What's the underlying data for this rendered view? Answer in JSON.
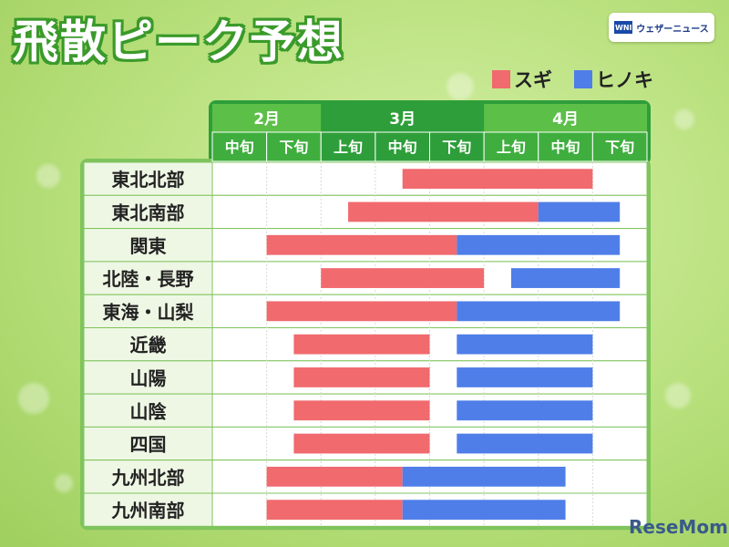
{
  "title": "飛散ピーク予想",
  "logo_text": "ウェザーニュース",
  "logo_mark": "WNI",
  "watermark": "ReseMom",
  "colors": {
    "sugi": "#f06a6e",
    "hinoki": "#4f7ee8",
    "header_dark": "#2e9e3a",
    "header_light": "#5cbf48"
  },
  "icons": {
    "legend_sugi": "red-square-icon",
    "legend_hinoki": "blue-square-icon"
  },
  "chart_data": {
    "type": "gantt",
    "months": [
      "2月",
      "3月",
      "4月"
    ],
    "periods": [
      "中旬",
      "下旬",
      "上旬",
      "中旬",
      "下旬",
      "上旬",
      "中旬",
      "下旬"
    ],
    "period_month_index": [
      0,
      0,
      1,
      1,
      1,
      2,
      2,
      2
    ],
    "legend": [
      {
        "name": "スギ",
        "color": "#f06a6e"
      },
      {
        "name": "ヒノキ",
        "color": "#4f7ee8"
      }
    ],
    "rows": [
      {
        "region": "東北北部",
        "sugi": [
          3.5,
          7.0
        ],
        "hinoki": null
      },
      {
        "region": "東北南部",
        "sugi": [
          2.5,
          6.0
        ],
        "hinoki": [
          6.0,
          7.5
        ]
      },
      {
        "region": "関東",
        "sugi": [
          1.0,
          4.5
        ],
        "hinoki": [
          4.5,
          7.5
        ]
      },
      {
        "region": "北陸・長野",
        "sugi": [
          2.0,
          5.0
        ],
        "hinoki": [
          5.5,
          7.5
        ]
      },
      {
        "region": "東海・山梨",
        "sugi": [
          1.0,
          4.5
        ],
        "hinoki": [
          4.5,
          7.5
        ]
      },
      {
        "region": "近畿",
        "sugi": [
          1.5,
          4.0
        ],
        "hinoki": [
          4.5,
          7.0
        ]
      },
      {
        "region": "山陽",
        "sugi": [
          1.5,
          4.0
        ],
        "hinoki": [
          4.5,
          7.0
        ]
      },
      {
        "region": "山陰",
        "sugi": [
          1.5,
          4.0
        ],
        "hinoki": [
          4.5,
          7.0
        ]
      },
      {
        "region": "四国",
        "sugi": [
          1.5,
          4.0
        ],
        "hinoki": [
          4.5,
          7.0
        ]
      },
      {
        "region": "九州北部",
        "sugi": [
          1.0,
          3.5
        ],
        "hinoki": [
          3.5,
          6.5
        ]
      },
      {
        "region": "九州南部",
        "sugi": [
          1.0,
          3.5
        ],
        "hinoki": [
          3.5,
          6.5
        ]
      }
    ]
  }
}
